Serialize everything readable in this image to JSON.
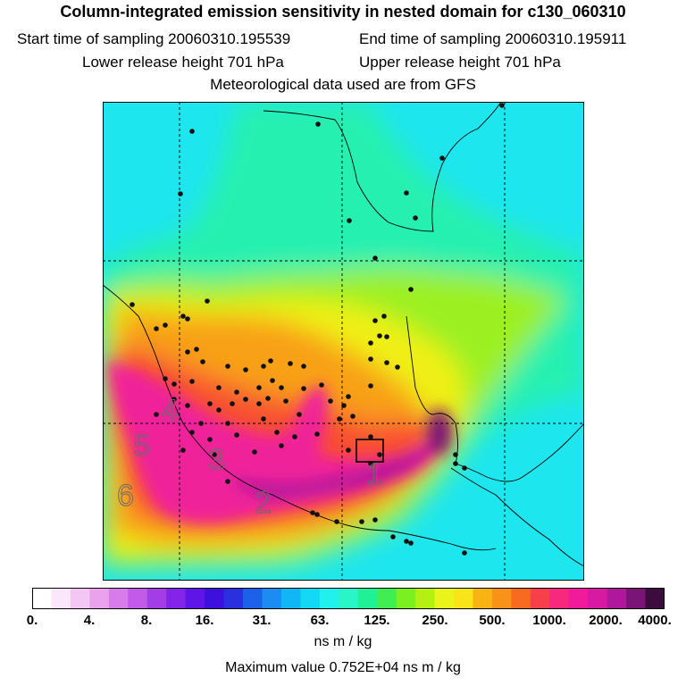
{
  "header": {
    "title": "Column-integrated emission sensitivity in nested domain for c130_060310",
    "start_time": "Start time of sampling 20060310.195539",
    "end_time": "End time of sampling 20060310.195911",
    "lower_release": "Lower release height  701 hPa",
    "upper_release": "Upper release height  701 hPa",
    "met_data": "Meteorological data used are from GFS"
  },
  "chart_data": {
    "type": "heatmap",
    "title": "Column-integrated emission sensitivity in nested domain for c130_060310",
    "colorbar": {
      "tick_labels": [
        "0.",
        "4.",
        "8.",
        "16.",
        "31.",
        "63.",
        "125.",
        "250.",
        "500.",
        "1000.",
        "2000.",
        "4000."
      ],
      "units": "ns m / kg",
      "colors": [
        "#ffffff",
        "#fbe6fb",
        "#f4c6f4",
        "#eaa2ee",
        "#d77ceb",
        "#c25bea",
        "#a23ee8",
        "#8225e8",
        "#5f15e8",
        "#3d10dd",
        "#2a2fe0",
        "#1d60ea",
        "#1a8cf2",
        "#10b6f5",
        "#12d8f5",
        "#22f0ec",
        "#28f5c8",
        "#22f094",
        "#40ee50",
        "#7af020",
        "#b4f012",
        "#e8f41a",
        "#f8e418",
        "#f8b414",
        "#f89218",
        "#f86a20",
        "#f8404c",
        "#f8287e",
        "#f01a9a",
        "#d81aa2",
        "#b0189c",
        "#7a1476",
        "#3c0c3e"
      ]
    },
    "max_value": "Maximum value  0.752E+04 ns m / kg",
    "region_labels": [
      "1",
      "2",
      "3",
      "4",
      "5",
      "6"
    ],
    "grid": true
  }
}
